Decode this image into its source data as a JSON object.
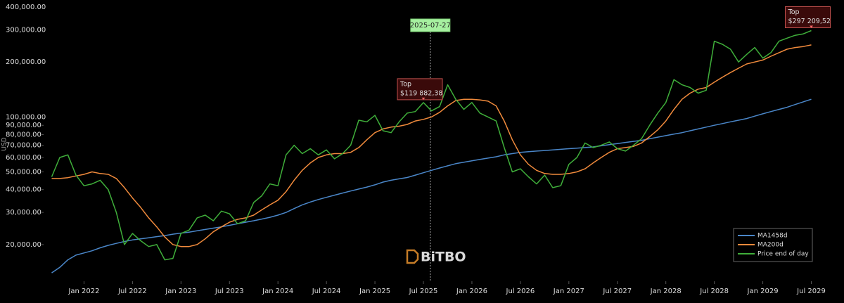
{
  "chart_data": {
    "type": "line",
    "y_label": "USD",
    "log_y": true,
    "grid": false,
    "legend": "bottom-right",
    "watermark": "BiTBO",
    "ylim": [
      12600,
      400000
    ],
    "yticks": [
      {
        "value": 20000,
        "label": "20,000.00"
      },
      {
        "value": 30000,
        "label": "30,000.00"
      },
      {
        "value": 40000,
        "label": "40,000.00"
      },
      {
        "value": 50000,
        "label": "50,000.00"
      },
      {
        "value": 60000,
        "label": "60,000.00"
      },
      {
        "value": 70000,
        "label": "70,000.00"
      },
      {
        "value": 80000,
        "label": "80,000.00"
      },
      {
        "value": 90000,
        "label": "90,000.00"
      },
      {
        "value": 100000,
        "label": "100,000.00"
      },
      {
        "value": 200000,
        "label": "200,000.00"
      },
      {
        "value": 300000,
        "label": "300,000.00"
      },
      {
        "value": 400000,
        "label": "400,000.00"
      }
    ],
    "xlim": [
      "2021-08",
      "2029-08"
    ],
    "xticks": [
      {
        "value": "2022-01",
        "label": "Jan 2022"
      },
      {
        "value": "2022-07",
        "label": "Jul 2022"
      },
      {
        "value": "2023-01",
        "label": "Jan 2023"
      },
      {
        "value": "2023-07",
        "label": "Jul 2023"
      },
      {
        "value": "2024-01",
        "label": "Jan 2024"
      },
      {
        "value": "2024-07",
        "label": "Jul 2024"
      },
      {
        "value": "2025-01",
        "label": "Jan 2025"
      },
      {
        "value": "2025-07",
        "label": "Jul 2025"
      },
      {
        "value": "2026-01",
        "label": "Jan 2026"
      },
      {
        "value": "2026-07",
        "label": "Jul 2026"
      },
      {
        "value": "2027-01",
        "label": "Jan 2027"
      },
      {
        "value": "2027-07",
        "label": "Jul 2027"
      },
      {
        "value": "2028-01",
        "label": "Jan 2028"
      },
      {
        "value": "2028-07",
        "label": "Jul 2028"
      },
      {
        "value": "2029-01",
        "label": "Jan 2029"
      },
      {
        "value": "2029-07",
        "label": "Jul 2029"
      }
    ],
    "marker_date": "2025-07-27",
    "tops": [
      {
        "label": "Top",
        "x": "2025-07",
        "value": 119882.38,
        "value_label": "$119 882,38"
      },
      {
        "label": "Top",
        "x": "2029-07",
        "value": 297209.52,
        "value_label": "$297 209,52"
      }
    ],
    "x": [
      "2021-09",
      "2021-10",
      "2021-11",
      "2021-12",
      "2022-01",
      "2022-02",
      "2022-03",
      "2022-04",
      "2022-05",
      "2022-06",
      "2022-07",
      "2022-08",
      "2022-09",
      "2022-10",
      "2022-11",
      "2022-12",
      "2023-01",
      "2023-02",
      "2023-03",
      "2023-04",
      "2023-05",
      "2023-06",
      "2023-07",
      "2023-08",
      "2023-09",
      "2023-10",
      "2023-11",
      "2023-12",
      "2024-01",
      "2024-02",
      "2024-03",
      "2024-04",
      "2024-05",
      "2024-06",
      "2024-07",
      "2024-08",
      "2024-09",
      "2024-10",
      "2024-11",
      "2024-12",
      "2025-01",
      "2025-02",
      "2025-03",
      "2025-04",
      "2025-05",
      "2025-06",
      "2025-07",
      "2025-08",
      "2025-09",
      "2025-10",
      "2025-11",
      "2025-12",
      "2026-01",
      "2026-02",
      "2026-03",
      "2026-04",
      "2026-05",
      "2026-06",
      "2026-07",
      "2026-08",
      "2026-09",
      "2026-10",
      "2026-11",
      "2026-12",
      "2027-01",
      "2027-02",
      "2027-03",
      "2027-04",
      "2027-05",
      "2027-06",
      "2027-07",
      "2027-08",
      "2027-09",
      "2027-10",
      "2027-11",
      "2027-12",
      "2028-01",
      "2028-02",
      "2028-03",
      "2028-04",
      "2028-05",
      "2028-06",
      "2028-07",
      "2028-08",
      "2028-09",
      "2028-10",
      "2028-11",
      "2028-12",
      "2029-01",
      "2029-02",
      "2029-03",
      "2029-04",
      "2029-05",
      "2029-06",
      "2029-07"
    ],
    "series": [
      {
        "name": "MA1458d",
        "color": "#4a86c8",
        "values": [
          14000,
          15000,
          16500,
          17500,
          18000,
          18500,
          19200,
          19800,
          20300,
          20800,
          21200,
          21500,
          21800,
          22100,
          22400,
          22800,
          23100,
          23400,
          23800,
          24200,
          24600,
          25000,
          25500,
          26000,
          26500,
          27000,
          27600,
          28200,
          29000,
          30000,
          31500,
          33000,
          34200,
          35300,
          36300,
          37300,
          38300,
          39300,
          40300,
          41300,
          42500,
          44000,
          45000,
          45800,
          46600,
          48000,
          49500,
          51000,
          52500,
          54000,
          55500,
          56500,
          57500,
          58500,
          59500,
          60500,
          62000,
          63000,
          64000,
          64500,
          65000,
          65500,
          66000,
          66500,
          67000,
          67500,
          68000,
          68500,
          69500,
          70500,
          71500,
          72500,
          73500,
          74500,
          76000,
          77500,
          79000,
          80500,
          82000,
          84000,
          86000,
          88000,
          90000,
          92000,
          94000,
          96000,
          98000,
          101000,
          104000,
          107000,
          110000,
          113000,
          117000,
          121000,
          125000
        ]
      },
      {
        "name": "MA200d",
        "color": "#f08a3c",
        "values": [
          46000,
          46000,
          46500,
          47500,
          48500,
          50000,
          49000,
          48500,
          46000,
          41000,
          36000,
          32000,
          28000,
          25000,
          22000,
          20000,
          19500,
          19500,
          20000,
          21500,
          23500,
          25000,
          26500,
          27500,
          28000,
          29000,
          31000,
          33000,
          35000,
          39000,
          45000,
          51000,
          56000,
          60000,
          62000,
          63000,
          63000,
          64000,
          68000,
          75000,
          82000,
          86000,
          88000,
          89000,
          91000,
          95000,
          97000,
          100000,
          106000,
          115000,
          123000,
          125000,
          125000,
          124000,
          122000,
          115000,
          95000,
          75000,
          62000,
          55000,
          51000,
          49000,
          48500,
          48500,
          49000,
          50000,
          52000,
          56000,
          60000,
          64000,
          67000,
          68000,
          69000,
          72000,
          78000,
          85000,
          95000,
          110000,
          125000,
          135000,
          142000,
          145000,
          155000,
          165000,
          175000,
          185000,
          195000,
          200000,
          205000,
          215000,
          225000,
          235000,
          240000,
          243000,
          248000
        ]
      },
      {
        "name": "Price end of day",
        "color": "#3fae3a",
        "values": [
          47000,
          60000,
          62000,
          48000,
          42000,
          43000,
          45000,
          40000,
          30000,
          20000,
          23000,
          21000,
          19500,
          20000,
          16500,
          16800,
          23000,
          24000,
          28000,
          29000,
          27000,
          30500,
          29500,
          26000,
          27000,
          34000,
          37000,
          43000,
          42000,
          62000,
          70000,
          63000,
          67000,
          62000,
          66000,
          59000,
          63000,
          70000,
          96000,
          94000,
          102000,
          84000,
          82000,
          94000,
          105000,
          107000,
          119882.38,
          108000,
          114000,
          150000,
          125000,
          110000,
          120000,
          105000,
          100000,
          95000,
          68000,
          50000,
          52000,
          47000,
          43000,
          48000,
          41000,
          42000,
          55000,
          60000,
          72000,
          68000,
          70000,
          73000,
          67000,
          65000,
          70000,
          76000,
          90000,
          105000,
          120000,
          160000,
          150000,
          145000,
          135000,
          140000,
          260000,
          250000,
          235000,
          200000,
          220000,
          240000,
          210000,
          225000,
          260000,
          270000,
          280000,
          285000,
          297209.52
        ]
      }
    ]
  }
}
